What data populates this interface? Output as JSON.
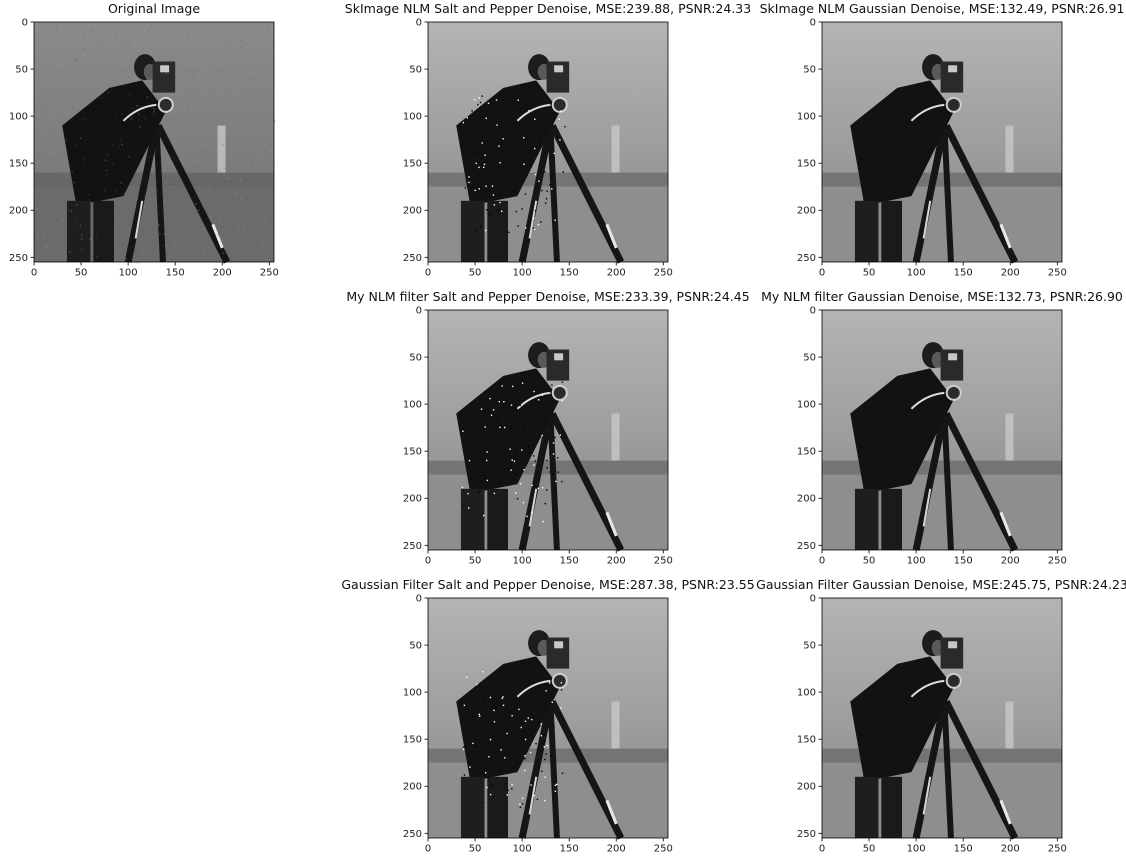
{
  "figure": {
    "background": "#ffffff",
    "image_subject": "cameraman photo (grayscale)",
    "axis_ticks": [
      "0",
      "50",
      "100",
      "150",
      "200",
      "250"
    ]
  },
  "chart_data": [
    {
      "type": "image",
      "id": "original",
      "title": "Original Image",
      "xlim": [
        0,
        255
      ],
      "ylim": [
        255,
        0
      ],
      "xticks": [
        0,
        50,
        100,
        150,
        200,
        250
      ],
      "yticks": [
        0,
        50,
        100,
        150,
        200,
        250
      ],
      "variant": "noisy"
    },
    {
      "type": "image",
      "id": "skimage_sp",
      "title": "SkImage NLM Salt and Pepper Denoise, MSE:239.88, PSNR:24.33",
      "mse": 239.88,
      "psnr": 24.33,
      "xlim": [
        0,
        255
      ],
      "ylim": [
        255,
        0
      ],
      "xticks": [
        0,
        50,
        100,
        150,
        200,
        250
      ],
      "yticks": [
        0,
        50,
        100,
        150,
        200,
        250
      ],
      "variant": "speckled"
    },
    {
      "type": "image",
      "id": "skimage_gauss",
      "title": "SkImage NLM Gaussian Denoise, MSE:132.49, PSNR:26.91",
      "mse": 132.49,
      "psnr": 26.91,
      "xlim": [
        0,
        255
      ],
      "ylim": [
        255,
        0
      ],
      "xticks": [
        0,
        50,
        100,
        150,
        200,
        250
      ],
      "yticks": [
        0,
        50,
        100,
        150,
        200,
        250
      ],
      "variant": "smooth"
    },
    {
      "type": "image",
      "id": "mynlm_sp",
      "title": "My NLM filter Salt and Pepper Denoise, MSE:233.39, PSNR:24.45",
      "mse": 233.39,
      "psnr": 24.45,
      "xlim": [
        0,
        255
      ],
      "ylim": [
        255,
        0
      ],
      "xticks": [
        0,
        50,
        100,
        150,
        200,
        250
      ],
      "yticks": [
        0,
        50,
        100,
        150,
        200,
        250
      ],
      "variant": "speckled"
    },
    {
      "type": "image",
      "id": "mynlm_gauss",
      "title": "My NLM filter Gaussian Denoise, MSE:132.73, PSNR:26.90",
      "mse": 132.73,
      "psnr": 26.9,
      "xlim": [
        0,
        255
      ],
      "ylim": [
        255,
        0
      ],
      "xticks": [
        0,
        50,
        100,
        150,
        200,
        250
      ],
      "yticks": [
        0,
        50,
        100,
        150,
        200,
        250
      ],
      "variant": "smooth"
    },
    {
      "type": "image",
      "id": "gaussfilt_sp",
      "title": "Gaussian Filter Salt and Pepper Denoise, MSE:287.38, PSNR:23.55",
      "mse": 287.38,
      "psnr": 23.55,
      "xlim": [
        0,
        255
      ],
      "ylim": [
        255,
        0
      ],
      "xticks": [
        0,
        50,
        100,
        150,
        200,
        250
      ],
      "yticks": [
        0,
        50,
        100,
        150,
        200,
        250
      ],
      "variant": "speckled"
    },
    {
      "type": "image",
      "id": "gaussfilt_gauss",
      "title": "Gaussian Filter Gaussian Denoise, MSE:245.75, PSNR:24.23",
      "mse": 245.75,
      "psnr": 24.23,
      "xlim": [
        0,
        255
      ],
      "ylim": [
        255,
        0
      ],
      "xticks": [
        0,
        50,
        100,
        150,
        200,
        250
      ],
      "yticks": [
        0,
        50,
        100,
        150,
        200,
        250
      ],
      "variant": "smooth"
    }
  ]
}
